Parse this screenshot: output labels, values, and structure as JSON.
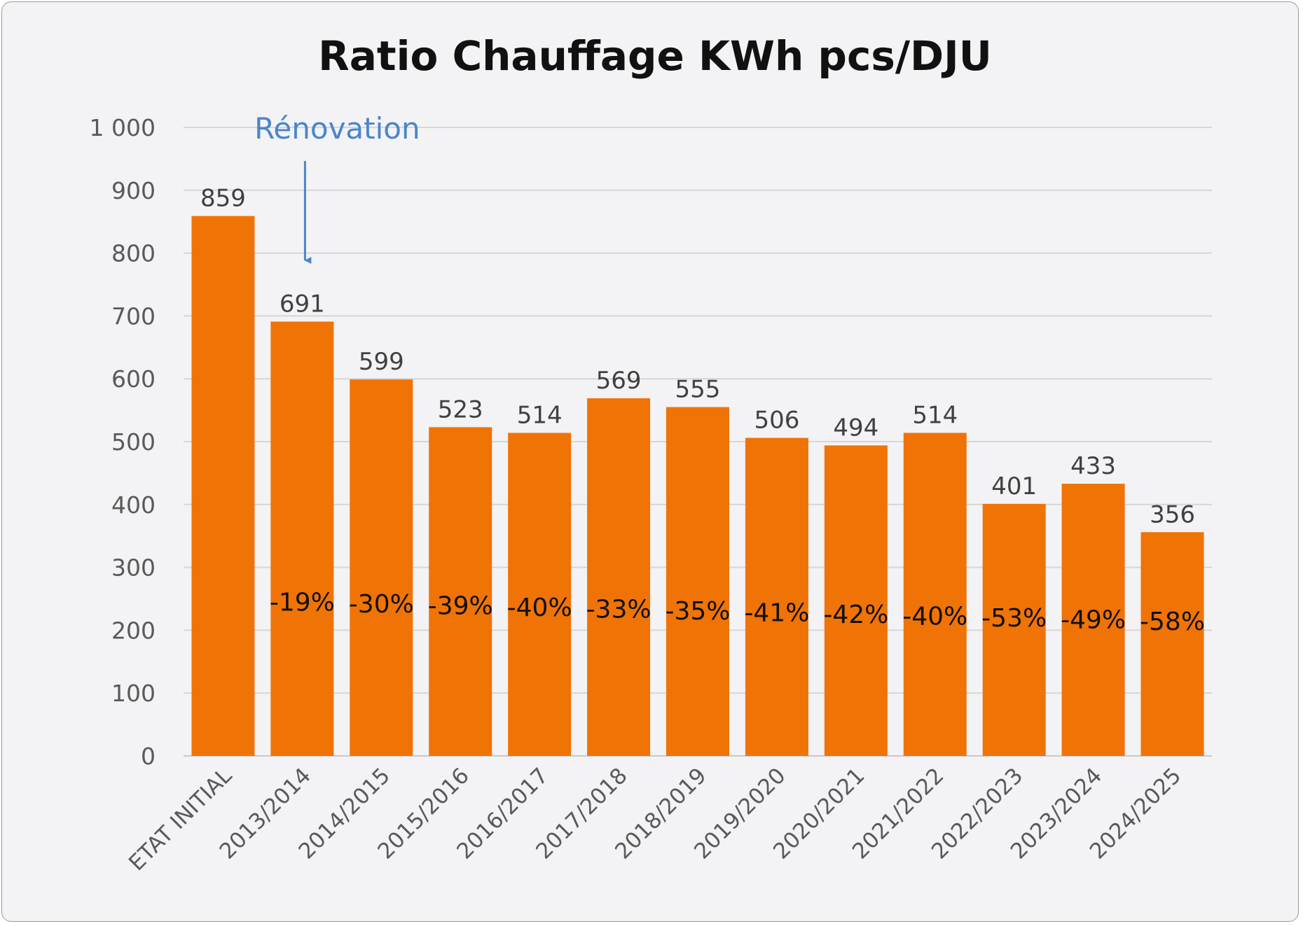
{
  "chart_data": {
    "type": "bar",
    "title": "Ratio Chauffage KWh pcs/DJU",
    "xlabel": "",
    "ylabel": "",
    "ylim": [
      0,
      1000
    ],
    "yticks": [
      0,
      100,
      200,
      300,
      400,
      500,
      600,
      700,
      800,
      900,
      1000
    ],
    "ytick_labels": [
      "0",
      "100",
      "200",
      "300",
      "400",
      "500",
      "600",
      "700",
      "800",
      "900",
      "1 000"
    ],
    "grid": true,
    "bar_color": "#f07306",
    "categories": [
      "ETAT INITIAL",
      "2013/2014",
      "2014/2015",
      "2015/2016",
      "2016/2017",
      "2017/2018",
      "2018/2019",
      "2019/2020",
      "2020/2021",
      "2021/2022",
      "2022/2023",
      "2023/2024",
      "2024/2025"
    ],
    "values": [
      859,
      691,
      599,
      523,
      514,
      569,
      555,
      506,
      494,
      514,
      401,
      433,
      356
    ],
    "value_labels": [
      "859",
      "691",
      "599",
      "523",
      "514",
      "569",
      "555",
      "506",
      "494",
      "514",
      "401",
      "433",
      "356"
    ],
    "percent_labels": [
      "",
      "-19%",
      "-30%",
      "-39%",
      "-40%",
      "-33%",
      "-35%",
      "-41%",
      "-42%",
      "-40%",
      "-53%",
      "-49%",
      "-58%"
    ],
    "annotation": {
      "text": "Rénovation",
      "target_category": "2013/2014",
      "color": "#4a86c8"
    }
  }
}
